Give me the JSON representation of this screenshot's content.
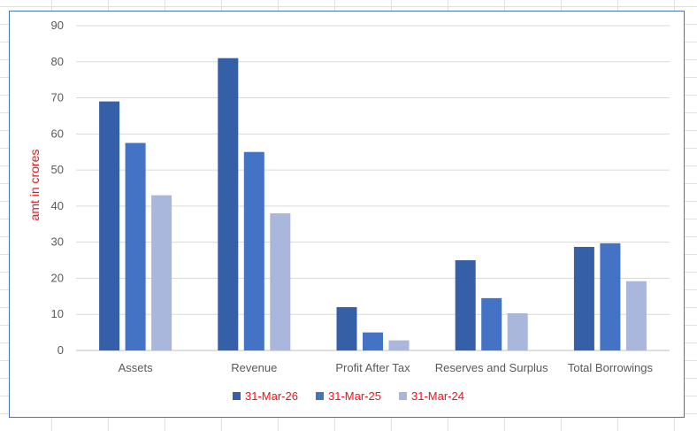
{
  "chart_data": {
    "type": "bar",
    "categories": [
      "Assets",
      "Revenue",
      "Profit After Tax",
      "Reserves and Surplus",
      "Total Borrowings"
    ],
    "series": [
      {
        "name": "31-Mar-26",
        "color": "#355fa7",
        "values": [
          69,
          81,
          12,
          25,
          28.7
        ]
      },
      {
        "name": "31-Mar-25",
        "color": "#4472c4",
        "values": [
          57.5,
          55,
          5,
          14.5,
          29.7
        ]
      },
      {
        "name": "31-Mar-24",
        "color": "#a9b7dc",
        "values": [
          43,
          38,
          2.8,
          10.3,
          19.2
        ]
      }
    ],
    "ylabel": "amt in crores",
    "ylim": [
      0,
      90
    ],
    "yticks": [
      0,
      10,
      20,
      30,
      40,
      50,
      60,
      70,
      80,
      90
    ],
    "grid": true,
    "legend_position": "bottom"
  }
}
